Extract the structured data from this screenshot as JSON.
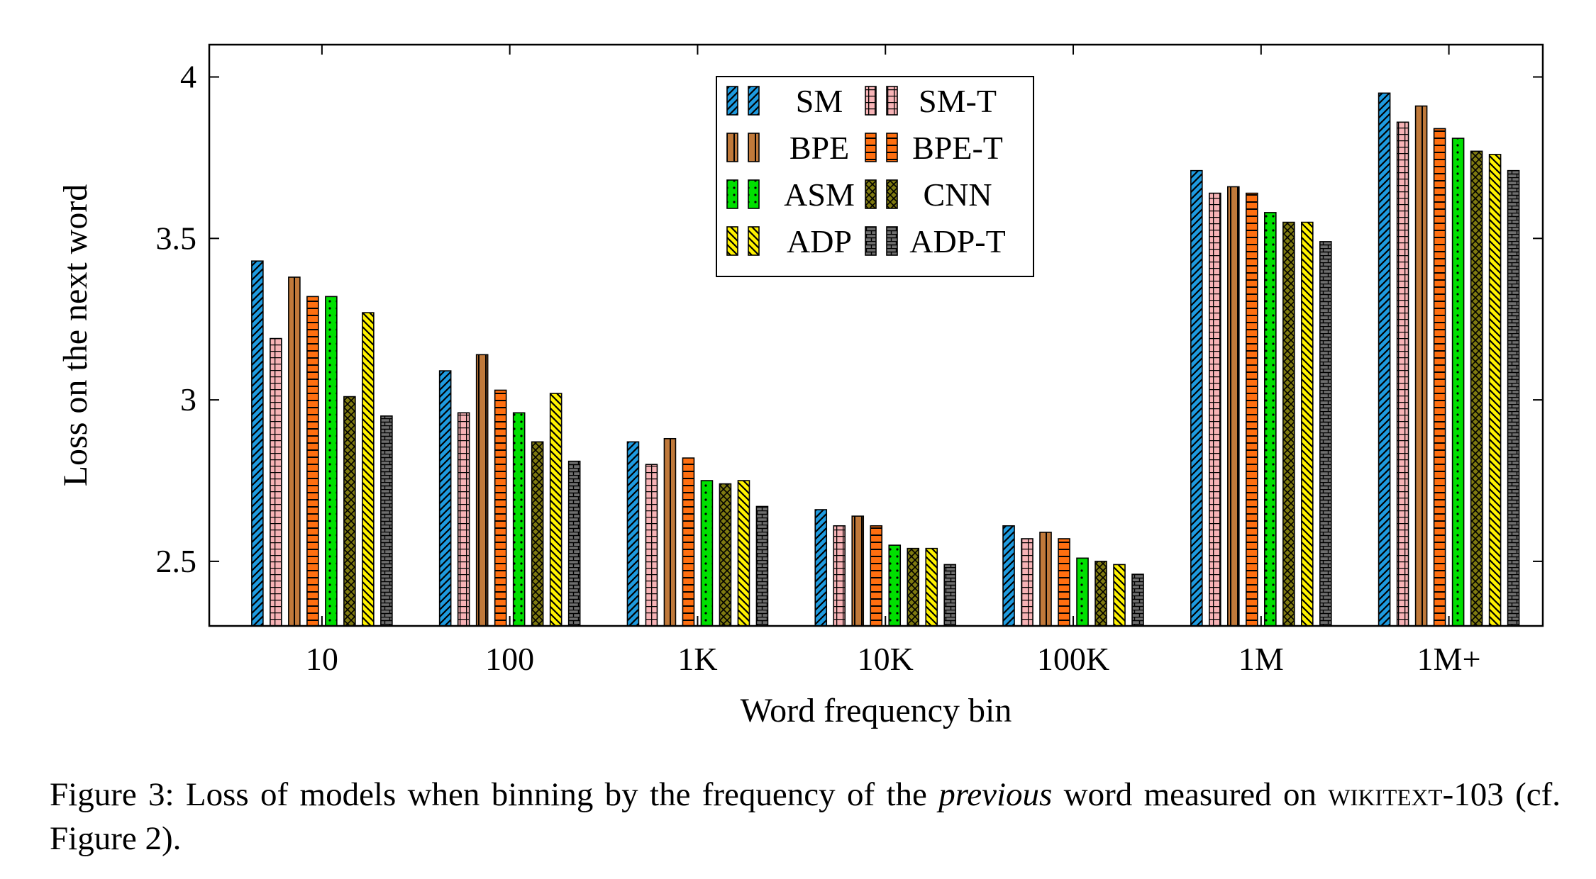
{
  "chart_data": {
    "type": "bar",
    "title": "",
    "xlabel": "Word frequency bin",
    "ylabel": "Loss on the next word",
    "categories": [
      "10",
      "100",
      "1K",
      "10K",
      "100K",
      "1M",
      "1M+"
    ],
    "ylim": [
      2.3,
      4.1
    ],
    "yticks": [
      2.5,
      3,
      3.5,
      4
    ],
    "ytick_labels": [
      "2.5",
      "3",
      "3.5",
      "4"
    ],
    "grid": false,
    "legend_position": "top-center",
    "series": [
      {
        "name": "SM",
        "color": "#1e9be0",
        "pattern": "north-east-lines",
        "values": [
          3.43,
          3.09,
          2.87,
          2.66,
          2.61,
          3.71,
          3.95
        ]
      },
      {
        "name": "SM-T",
        "color": "#f7b3b6",
        "pattern": "grid",
        "values": [
          3.19,
          2.96,
          2.8,
          2.61,
          2.57,
          3.64,
          3.86
        ]
      },
      {
        "name": "BPE",
        "color": "#c0793a",
        "pattern": "vertical-lines",
        "values": [
          3.38,
          3.14,
          2.88,
          2.64,
          2.59,
          3.66,
          3.91
        ]
      },
      {
        "name": "BPE-T",
        "color": "#ff6f10",
        "pattern": "horizontal-lines",
        "values": [
          3.32,
          3.03,
          2.82,
          2.61,
          2.57,
          3.64,
          3.84
        ]
      },
      {
        "name": "ASM",
        "color": "#00e000",
        "pattern": "dots",
        "values": [
          3.32,
          2.96,
          2.75,
          2.55,
          2.51,
          3.58,
          3.81
        ]
      },
      {
        "name": "CNN",
        "color": "#7f7a10",
        "pattern": "crosshatch",
        "values": [
          3.01,
          2.87,
          2.74,
          2.54,
          2.5,
          3.55,
          3.77
        ]
      },
      {
        "name": "ADP",
        "color": "#fff200",
        "pattern": "north-west-lines",
        "values": [
          3.27,
          3.02,
          2.75,
          2.54,
          2.49,
          3.55,
          3.76
        ]
      },
      {
        "name": "ADP-T",
        "color": "#6e6e6e",
        "pattern": "bricks",
        "values": [
          2.95,
          2.81,
          2.67,
          2.49,
          2.46,
          3.49,
          3.71
        ]
      }
    ]
  },
  "caption": {
    "prefix": "Figure 3:  Loss of models when binning by the frequency of the ",
    "emphasis": "previous",
    "middle": " word measured on ",
    "dataset": "wikitext",
    "suffix": "-103 (cf. Figure 2)."
  }
}
